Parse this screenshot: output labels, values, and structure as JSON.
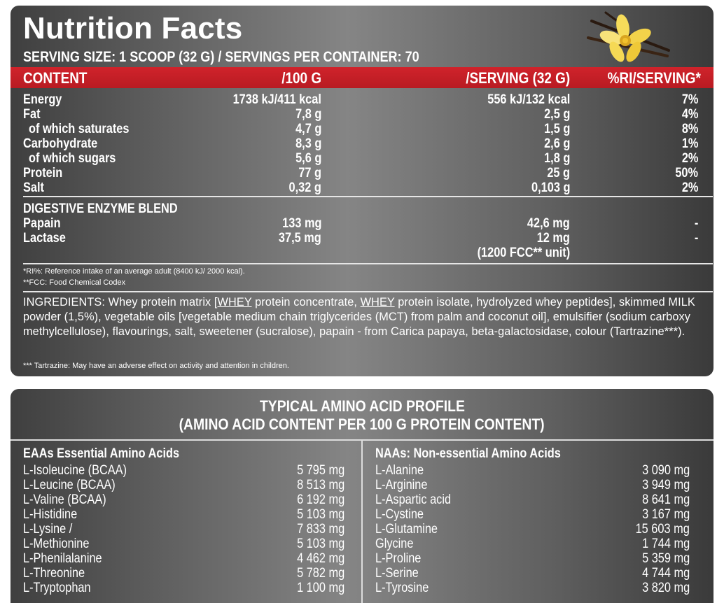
{
  "label": {
    "title": "Nutrition Facts",
    "serving_line": "SERVING SIZE: 1 SCOOP (32 G) / SERVINGS PER CONTAINER: 70",
    "columns": [
      "CONTENT",
      "/100 G",
      "/SERVING (32 G)",
      "%RI/SERVING*"
    ],
    "nutrients": [
      {
        "name": "Energy",
        "per100": "1738 kJ/411 kcal",
        "serving": "556 kJ/132 kcal",
        "ri": "7%"
      },
      {
        "name": "Fat",
        "per100": "7,8 g",
        "serving": "2,5 g",
        "ri": "4%"
      },
      {
        "name": "of which saturates",
        "per100": "4,7 g",
        "serving": "1,5 g",
        "ri": "8%",
        "indent": true
      },
      {
        "name": "Carbohydrate",
        "per100": "8,3 g",
        "serving": "2,6 g",
        "ri": "1%"
      },
      {
        "name": "of which sugars",
        "per100": "5,6 g",
        "serving": "1,8 g",
        "ri": "2%",
        "indent": true
      },
      {
        "name": "Protein",
        "per100": "77 g",
        "serving": "25 g",
        "ri": "50%"
      },
      {
        "name": "Salt",
        "per100": "0,32 g",
        "serving": "0,103 g",
        "ri": "2%"
      }
    ],
    "enzyme_heading": "DIGESTIVE ENZYME BLEND",
    "enzymes": [
      {
        "name": "Papain",
        "per100": "133 mg",
        "serving": "42,6 mg",
        "ri": "-"
      },
      {
        "name": "Lactase",
        "per100": "37,5 mg",
        "serving": "12 mg",
        "ri": "-"
      }
    ],
    "lactase_unit": "(1200 FCC** unit)",
    "footnote_ri": "*RI%: Reference intake of an average adult (8400 kJ/ 2000 kcal).",
    "footnote_fcc": "**FCC: Food Chemical Codex",
    "ingredients": {
      "p1": "INGREDIENTS: Whey protein matrix [",
      "whey1": "WHEY",
      "p2": " protein concentrate, ",
      "whey2": "WHEY",
      "p3": " protein isolate, hydrolyzed whey peptides], skimmed ",
      "milk": "MILK",
      "p4": " powder (1,5%), vegetable oils [vegetable medium chain triglycerides (MCT) from palm and coconut oil], emulsifier (sodium carboxy methylcellulose), flavourings, salt, sweetener (sucralose), papain - from Carica papaya, beta-galactosidase, colour (Tartrazine***)."
    },
    "footnote_tartrazine": "*** Tartrazine: May have an adverse effect on activity and attention in children."
  },
  "amino": {
    "title_line1": "TYPICAL AMINO ACID PROFILE",
    "title_line2": "(AMINO ACID CONTENT PER 100 G PROTEIN CONTENT)",
    "eaa_heading": "EAAs Essential Amino Acids",
    "naa_heading": "NAAs: Non-essential Amino Acids",
    "eaa": [
      {
        "name": "L-Isoleucine (BCAA)",
        "value": "5 795 mg"
      },
      {
        "name": "L-Leucine (BCAA)",
        "value": "8 513 mg"
      },
      {
        "name": "L-Valine (BCAA)",
        "value": "6 192 mg"
      },
      {
        "name": "L-Histidine",
        "value": "5 103 mg"
      },
      {
        "name": "L-Lysine /",
        "value": "7 833 mg"
      },
      {
        "name": "L-Methionine",
        "value": "5 103 mg"
      },
      {
        "name": "L-Phenilalanine",
        "value": "4 462 mg"
      },
      {
        "name": "L-Threonine",
        "value": "5 782 mg"
      },
      {
        "name": "L-Tryptophan",
        "value": "1 100 mg"
      }
    ],
    "naa": [
      {
        "name": "L-Alanine",
        "value": "3 090 mg"
      },
      {
        "name": "L-Arginine",
        "value": "3 949 mg"
      },
      {
        "name": "L-Aspartic acid",
        "value": "8 641 mg"
      },
      {
        "name": "L-Cystine",
        "value": "3 167 mg"
      },
      {
        "name": "L-Glutamine",
        "value": "15 603 mg"
      },
      {
        "name": "Glycine",
        "value": "1 744 mg"
      },
      {
        "name": "L-Proline",
        "value": "5 359 mg"
      },
      {
        "name": "L-Serine",
        "value": "4 744 mg"
      },
      {
        "name": "L-Tyrosine",
        "value": "3 820 mg"
      }
    ]
  },
  "colors": {
    "red_bar": "#c81f27",
    "panel_dark": "#3f3f3f",
    "panel_light": "#858585",
    "flower": "#f3d24a"
  },
  "icons": [
    "vanilla-flower-icon"
  ]
}
